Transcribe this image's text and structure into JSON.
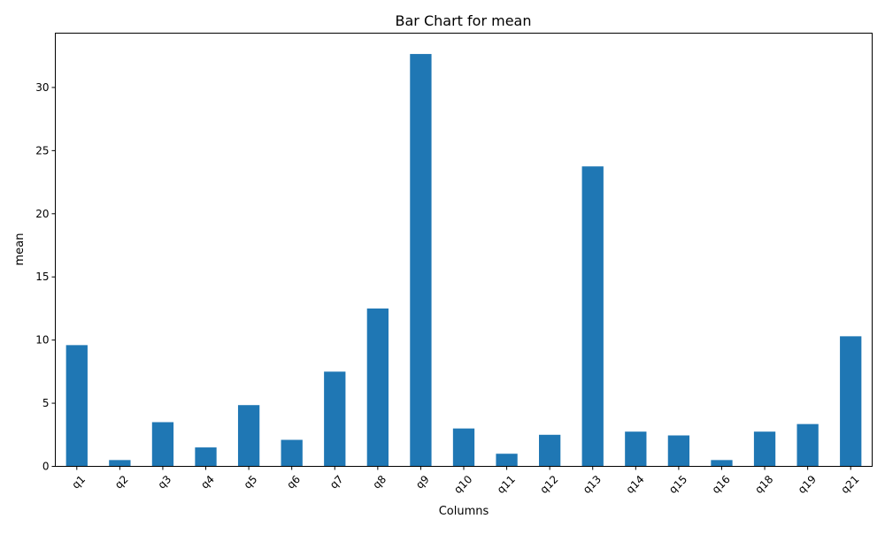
{
  "chart_data": {
    "type": "bar",
    "title": "Bar Chart for mean",
    "xlabel": "Columns",
    "ylabel": "mean",
    "categories": [
      "q1",
      "q2",
      "q3",
      "q4",
      "q5",
      "q6",
      "q7",
      "q8",
      "q9",
      "q10",
      "q11",
      "q12",
      "q13",
      "q14",
      "q15",
      "q16",
      "q18",
      "q19",
      "q21"
    ],
    "values": [
      9.6,
      0.5,
      3.5,
      1.5,
      4.85,
      2.1,
      7.5,
      12.5,
      32.65,
      3.0,
      1.0,
      2.5,
      23.75,
      2.75,
      2.45,
      0.5,
      2.75,
      3.35,
      10.3
    ],
    "ylim": [
      0,
      34.3
    ],
    "yticks": [
      0,
      5,
      10,
      15,
      20,
      25,
      30
    ],
    "grid": false,
    "legend": "none",
    "bar_color": "#1f77b4"
  }
}
